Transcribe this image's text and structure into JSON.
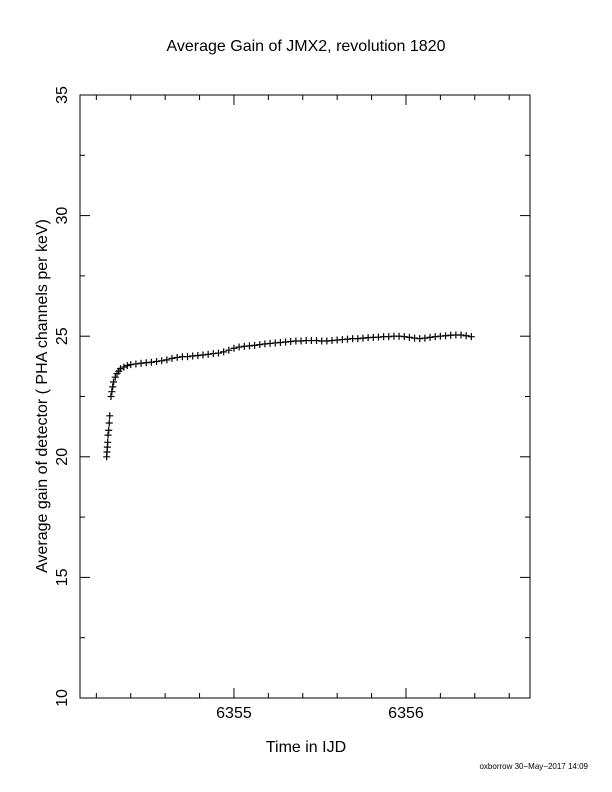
{
  "chart_data": {
    "type": "scatter",
    "title": "Average Gain of JMX2, revolution 1820",
    "xlabel": "Time in IJD",
    "ylabel": "Average gain of detector ( PHA channels per keV)",
    "footer": "oxborrow 30−May−2017 14:09",
    "xlim": [
      6354.105,
      6356.721
    ],
    "ylim": [
      10,
      35
    ],
    "xticks": [
      6355,
      6356
    ],
    "yticks": [
      10,
      15,
      20,
      25,
      30,
      35
    ],
    "xminor_ticks": [
      6354.2,
      6354.4,
      6354.6,
      6354.8,
      6355.2,
      6355.4,
      6355.6,
      6355.8,
      6356.2,
      6356.4,
      6356.6
    ],
    "yminor_ticks": [
      12.5,
      17.5,
      22.5,
      27.5,
      32.5
    ],
    "marker": "+",
    "color": "#000000",
    "x": [
      6354.26,
      6354.262,
      6354.264,
      6354.266,
      6354.268,
      6354.272,
      6354.275,
      6354.278,
      6354.285,
      6354.29,
      6354.295,
      6354.3,
      6354.31,
      6354.32,
      6354.33,
      6354.34,
      6354.36,
      6354.38,
      6354.4,
      6354.43,
      6354.46,
      6354.49,
      6354.52,
      6354.55,
      6354.58,
      6354.61,
      6354.64,
      6354.67,
      6354.7,
      6354.73,
      6354.76,
      6354.79,
      6354.82,
      6354.85,
      6354.88,
      6354.91,
      6354.94,
      6354.97,
      6355.0,
      6355.03,
      6355.06,
      6355.09,
      6355.12,
      6355.15,
      6355.18,
      6355.21,
      6355.24,
      6355.27,
      6355.3,
      6355.33,
      6355.36,
      6355.39,
      6355.42,
      6355.45,
      6355.48,
      6355.51,
      6355.54,
      6355.57,
      6355.6,
      6355.63,
      6355.66,
      6355.69,
      6355.72,
      6355.75,
      6355.78,
      6355.81,
      6355.84,
      6355.87,
      6355.9,
      6355.93,
      6355.96,
      6355.99,
      6356.02,
      6356.05,
      6356.08,
      6356.11,
      6356.14,
      6356.17,
      6356.2,
      6356.23,
      6356.26,
      6356.29,
      6356.32,
      6356.35,
      6356.38
    ],
    "values": [
      20.0,
      20.2,
      20.4,
      20.6,
      20.9,
      21.1,
      21.4,
      21.7,
      22.5,
      22.7,
      22.9,
      23.1,
      23.3,
      23.45,
      23.55,
      23.65,
      23.72,
      23.78,
      23.82,
      23.85,
      23.88,
      23.9,
      23.92,
      23.95,
      23.98,
      24.02,
      24.08,
      24.12,
      24.15,
      24.15,
      24.18,
      24.2,
      24.22,
      24.25,
      24.28,
      24.3,
      24.35,
      24.42,
      24.5,
      24.55,
      24.58,
      24.6,
      24.62,
      24.65,
      24.68,
      24.7,
      24.72,
      24.74,
      24.76,
      24.78,
      24.8,
      24.8,
      24.82,
      24.82,
      24.82,
      24.8,
      24.8,
      24.82,
      24.84,
      24.86,
      24.88,
      24.9,
      24.9,
      24.92,
      24.94,
      24.95,
      24.96,
      24.98,
      24.98,
      25.0,
      25.0,
      24.98,
      24.95,
      24.92,
      24.9,
      24.92,
      24.95,
      24.98,
      25.0,
      25.02,
      25.04,
      25.05,
      25.05,
      25.02,
      24.98
    ]
  }
}
